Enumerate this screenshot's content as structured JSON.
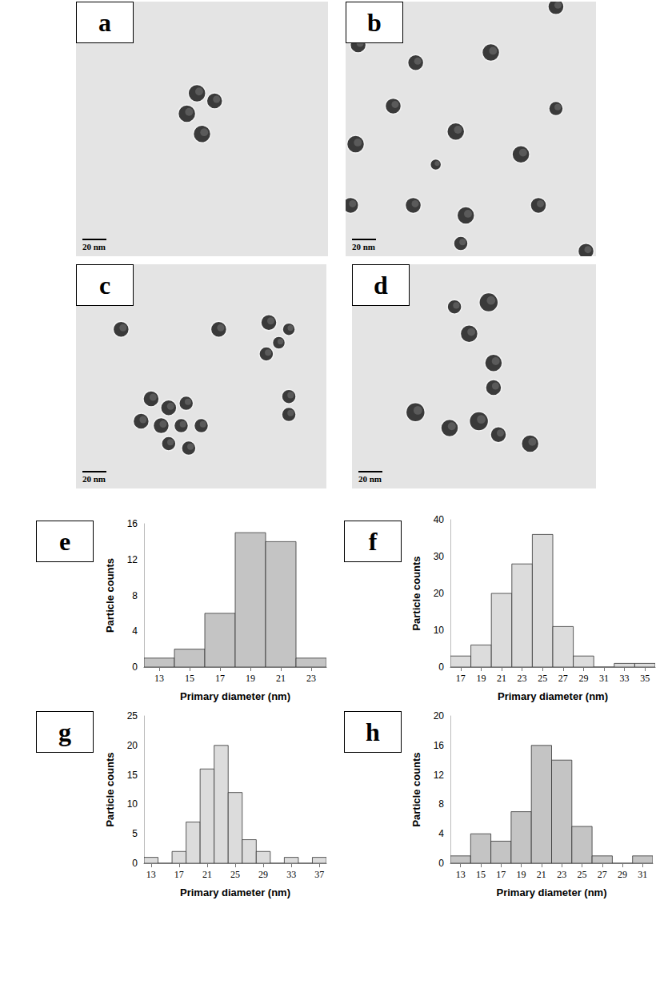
{
  "images": [
    {
      "title": "a",
      "scale_bar": "20 nm"
    },
    {
      "title": "b",
      "scale_bar": "20 nm"
    },
    {
      "title": "c",
      "scale_bar": "20 nm"
    },
    {
      "title": "d",
      "scale_bar": "20 nm"
    }
  ],
  "chart_data": [
    {
      "type": "histogram",
      "title": "e",
      "xlabel": "Primary diameter (nm)",
      "ylabel": "Particle counts",
      "bins": [
        12,
        14,
        16,
        18,
        20,
        22,
        24
      ],
      "values": [
        1,
        2,
        6,
        15,
        14,
        1
      ],
      "xlim": [
        12,
        24
      ],
      "xticks": [
        13,
        15,
        17,
        19,
        21,
        23
      ],
      "ylim": [
        0,
        16
      ],
      "yticks": [
        0,
        4,
        8,
        12,
        16
      ],
      "color": "#c4c4c4",
      "grid": false
    },
    {
      "type": "histogram",
      "title": "f",
      "xlabel": "Primary diameter (nm)",
      "ylabel": "Particle counts",
      "bins": [
        16,
        18,
        20,
        22,
        24,
        26,
        28,
        30,
        32,
        34,
        36
      ],
      "values": [
        3,
        6,
        20,
        28,
        36,
        11,
        3,
        0,
        1,
        1
      ],
      "xlim": [
        16,
        36
      ],
      "xticks": [
        17,
        19,
        21,
        23,
        25,
        27,
        29,
        31,
        33,
        35
      ],
      "ylim": [
        0,
        40
      ],
      "yticks": [
        0,
        10,
        20,
        30,
        40
      ],
      "color": "#dcdcdc",
      "grid": false
    },
    {
      "type": "histogram",
      "title": "g",
      "xlabel": "Primary diameter (nm)",
      "ylabel": "Particle counts",
      "bins": [
        12,
        14,
        16,
        18,
        20,
        22,
        24,
        26,
        28,
        30,
        32,
        34,
        36,
        38
      ],
      "values": [
        1,
        0,
        2,
        7,
        16,
        20,
        12,
        4,
        2,
        0,
        1,
        0,
        1
      ],
      "xlim": [
        12,
        38
      ],
      "xticks": [
        13,
        17,
        21,
        25,
        29,
        33,
        37
      ],
      "ylim": [
        0,
        25
      ],
      "yticks": [
        0,
        5,
        10,
        15,
        20,
        25
      ],
      "color": "#dcdcdc",
      "grid": false
    },
    {
      "type": "histogram",
      "title": "h",
      "xlabel": "Primary diameter (nm)",
      "ylabel": "Particle counts",
      "bins": [
        12,
        14,
        16,
        18,
        20,
        22,
        24,
        26,
        28,
        30,
        32
      ],
      "values": [
        1,
        4,
        3,
        7,
        16,
        14,
        5,
        1,
        0,
        1
      ],
      "xlim": [
        12,
        32
      ],
      "xticks": [
        13,
        15,
        17,
        19,
        21,
        23,
        25,
        27,
        29,
        31
      ],
      "ylim": [
        0,
        20
      ],
      "yticks": [
        0,
        4,
        8,
        12,
        16,
        20
      ],
      "color": "#c4c4c4",
      "grid": false
    }
  ]
}
